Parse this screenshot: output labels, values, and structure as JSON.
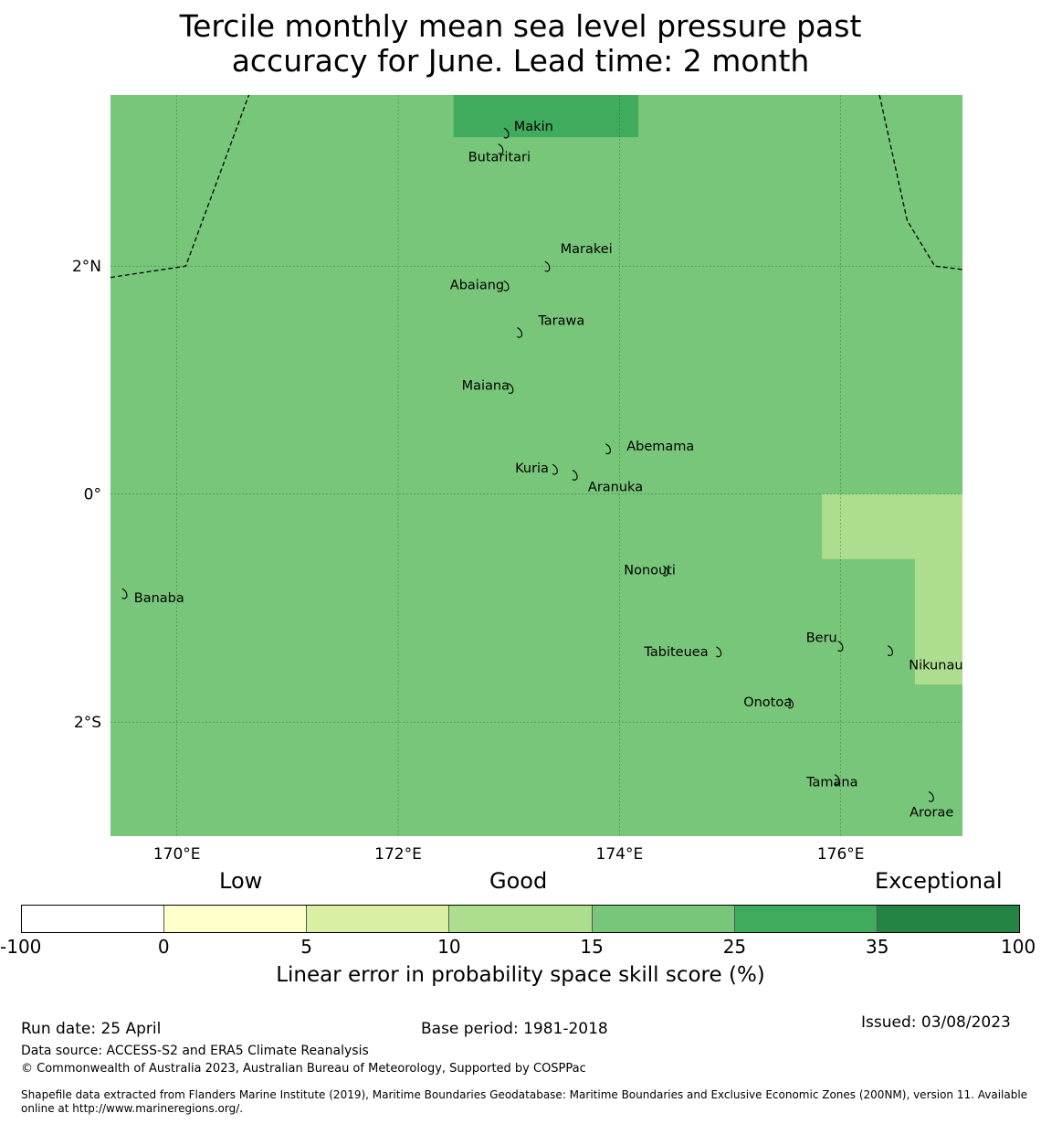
{
  "title_line1": "Tercile monthly mean sea level pressure past",
  "title_line2": "accuracy for June. Lead time: 2 month",
  "map": {
    "lon_range": [
      169.4,
      177.1
    ],
    "lat_range": [
      -3.0,
      3.5
    ],
    "background_color": "#78c679",
    "lon_ticks": [
      {
        "value": 170,
        "label": "170°E"
      },
      {
        "value": 172,
        "label": "172°E"
      },
      {
        "value": 174,
        "label": "174°E"
      },
      {
        "value": 176,
        "label": "176°E"
      }
    ],
    "lat_ticks": [
      {
        "value": 2,
        "label": "2°N"
      },
      {
        "value": 0,
        "label": "0°"
      },
      {
        "value": -2,
        "label": "2°S"
      }
    ],
    "cells": [
      {
        "lon": [
          172.5,
          174.17
        ],
        "lat": [
          3.13,
          3.5
        ],
        "color": "#41ab5d"
      },
      {
        "lon": [
          175.83,
          177.1
        ],
        "lat": [
          -0.57,
          0.0
        ],
        "color": "#addd8e"
      },
      {
        "lon": [
          176.67,
          177.1
        ],
        "lat": [
          -1.67,
          -0.57
        ],
        "color": "#addd8e"
      }
    ],
    "boundaries": [
      [
        [
          169.4,
          1.9
        ],
        [
          170.08,
          2.0
        ],
        [
          170.65,
          3.5
        ]
      ],
      [
        [
          176.35,
          3.5
        ],
        [
          176.6,
          2.4
        ],
        [
          176.85,
          2.0
        ],
        [
          177.1,
          1.97
        ]
      ]
    ],
    "islands": [
      {
        "name": "Makin",
        "lon": 172.98,
        "lat": 3.17,
        "label_dx": 8,
        "label_dy": -2
      },
      {
        "name": "Butaritari",
        "lon": 172.93,
        "lat": 3.03,
        "label_dx": -36,
        "label_dy": 14
      },
      {
        "name": "Marakei",
        "lon": 173.35,
        "lat": 2.0,
        "label_dx": 14,
        "label_dy": -14
      },
      {
        "name": "Abaiang",
        "lon": 172.98,
        "lat": 1.83,
        "label_dx": -62,
        "label_dy": 4
      },
      {
        "name": "Tarawa",
        "lon": 173.1,
        "lat": 1.42,
        "label_dx": 20,
        "label_dy": -8
      },
      {
        "name": "Maiana",
        "lon": 173.02,
        "lat": 0.93,
        "label_dx": -54,
        "label_dy": 2
      },
      {
        "name": "Abemama",
        "lon": 173.9,
        "lat": 0.4,
        "label_dx": 20,
        "label_dy": 2
      },
      {
        "name": "Kuria",
        "lon": 173.42,
        "lat": 0.22,
        "label_dx": -44,
        "label_dy": 4
      },
      {
        "name": "Aranuka",
        "lon": 173.6,
        "lat": 0.17,
        "label_dx": 14,
        "label_dy": 18
      },
      {
        "name": "Nonouti",
        "lon": 174.42,
        "lat": -0.67,
        "label_dx": -46,
        "label_dy": 4
      },
      {
        "name": "Banaba",
        "lon": 169.53,
        "lat": -0.87,
        "label_dx": 10,
        "label_dy": 10
      },
      {
        "name": "Tabiteuea",
        "lon": 174.9,
        "lat": -1.38,
        "label_dx": -82,
        "label_dy": 5
      },
      {
        "name": "Beru",
        "lon": 176.0,
        "lat": -1.33,
        "label_dx": -38,
        "label_dy": -4
      },
      {
        "name": "Nikunau",
        "lon": 176.45,
        "lat": -1.37,
        "label_dx": 20,
        "label_dy": 21
      },
      {
        "name": "Onotoa",
        "lon": 175.55,
        "lat": -1.83,
        "label_dx": -52,
        "label_dy": 4
      },
      {
        "name": "Tamana",
        "lon": 175.97,
        "lat": -2.5,
        "label_dx": -34,
        "label_dy": 8
      },
      {
        "name": "Arorae",
        "lon": 176.82,
        "lat": -2.65,
        "label_dx": -24,
        "label_dy": 22
      }
    ]
  },
  "colorbar": {
    "categories": [
      "Low",
      "Good",
      "Exceptional"
    ],
    "colors": [
      "#ffffff",
      "#ffffcc",
      "#d9f0a3",
      "#addd8e",
      "#78c679",
      "#41ab5d",
      "#238443"
    ],
    "ticks": [
      "-100",
      "0",
      "5",
      "10",
      "15",
      "25",
      "35",
      "100"
    ],
    "label": "Linear error in probability space skill score (%)"
  },
  "footer": {
    "run_date": "Run date: 25 April",
    "base_period": "Base period: 1981-2018",
    "issued": "Issued: 03/08/2023",
    "data_source": "Data source: ACCESS-S2 and ERA5 Climate Reanalysis",
    "copyright": "© Commonwealth of Australia 2023, Australian Bureau of Meteorology, Supported by COSPPac",
    "shapefile_line1": "Shapefile data extracted from Flanders Marine Institute (2019), Maritime Boundaries Geodatabase: Maritime Boundaries and Exclusive Economic Zones (200NM), version 11. Available",
    "shapefile_line2": "online at http://www.marineregions.org/."
  }
}
